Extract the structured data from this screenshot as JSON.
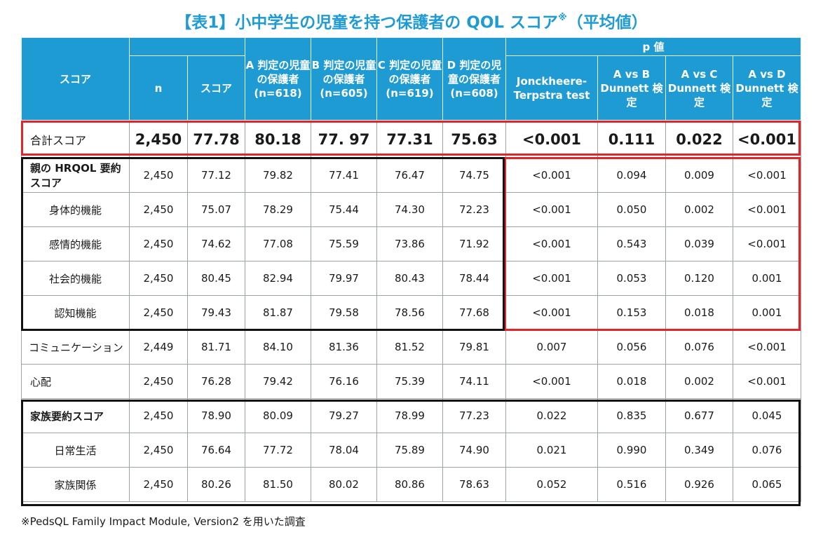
{
  "title": {
    "main": "【表1】小中学生の児童を持つ保護者の QOL スコア",
    "mark": "※",
    "suffix": "（平均値）"
  },
  "header": {
    "score": "スコア",
    "n": "n",
    "score_col": "スコア",
    "group_a": "A 判定の児童の保護者 (n=618)",
    "group_b": "B 判定の児童の保護者 (n=605)",
    "group_c": "C 判定の児童の保護者 (n=619)",
    "group_d": "D 判定の児童の保護者 (n=608)",
    "p_value": "p 値",
    "jt": "Jonckheere-Terpstra test",
    "a_vs_b": "A vs B Dunnett 検定",
    "a_vs_c": "A vs C Dunnett 検定",
    "a_vs_d": "A vs D Dunnett 検定"
  },
  "rows": [
    {
      "label": "合計スコア",
      "n": "2,450",
      "score": "77.78",
      "a": "80.18",
      "b": "77. 97",
      "c": "77.31",
      "d": "75.63",
      "jt": "<0.001",
      "ab": "0.111",
      "ac": "0.022",
      "ad": "<0.001"
    },
    {
      "label": "親の HRQOL 要約スコア",
      "n": "2,450",
      "score": "77.12",
      "a": "79.82",
      "b": "77.41",
      "c": "76.47",
      "d": "74.75",
      "jt": "<0.001",
      "ab": "0.094",
      "ac": "0.009",
      "ad": "<0.001"
    },
    {
      "label": "身体的機能",
      "n": "2,450",
      "score": "75.07",
      "a": "78.29",
      "b": "75.44",
      "c": "74.30",
      "d": "72.23",
      "jt": "<0.001",
      "ab": "0.050",
      "ac": "0.002",
      "ad": "<0.001"
    },
    {
      "label": "感情的機能",
      "n": "2,450",
      "score": "74.62",
      "a": "77.08",
      "b": "75.59",
      "c": "73.86",
      "d": "71.92",
      "jt": "<0.001",
      "ab": "0.543",
      "ac": "0.039",
      "ad": "<0.001"
    },
    {
      "label": "社会的機能",
      "n": "2,450",
      "score": "80.45",
      "a": "82.94",
      "b": "79.97",
      "c": "80.43",
      "d": "78.44",
      "jt": "<0.001",
      "ab": "0.053",
      "ac": "0.120",
      "ad": "0.001"
    },
    {
      "label": "認知機能",
      "n": "2,450",
      "score": "79.43",
      "a": "81.87",
      "b": "79.58",
      "c": "78.56",
      "d": "77.68",
      "jt": "<0.001",
      "ab": "0.153",
      "ac": "0.018",
      "ad": "0.001"
    },
    {
      "label": "コミュニケーション",
      "n": "2,449",
      "score": "81.71",
      "a": "84.10",
      "b": "81.36",
      "c": "81.52",
      "d": "79.81",
      "jt": "0.007",
      "ab": "0.056",
      "ac": "0.076",
      "ad": "<0.001"
    },
    {
      "label": "心配",
      "n": "2,450",
      "score": "76.28",
      "a": "79.42",
      "b": "76.16",
      "c": "75.39",
      "d": "74.11",
      "jt": "<0.001",
      "ab": "0.018",
      "ac": "0.002",
      "ad": "<0.001"
    },
    {
      "label": "家族要約スコア",
      "n": "2,450",
      "score": "78.90",
      "a": "80.09",
      "b": "79.27",
      "c": "78.99",
      "d": "77.23",
      "jt": "0.022",
      "ab": "0.835",
      "ac": "0.677",
      "ad": "0.045"
    },
    {
      "label": "日常生活",
      "n": "2,450",
      "score": "76.64",
      "a": "77.72",
      "b": "78.04",
      "c": "75.89",
      "d": "74.90",
      "jt": "0.021",
      "ab": "0.990",
      "ac": "0.349",
      "ad": "0.076"
    },
    {
      "label": "家族関係",
      "n": "2,450",
      "score": "80.26",
      "a": "81.50",
      "b": "80.02",
      "c": "80.86",
      "d": "78.63",
      "jt": "0.052",
      "ab": "0.516",
      "ac": "0.926",
      "ad": "0.065"
    }
  ],
  "footnote": "※PedsQL Family Impact Module, Version2 を用いた調査",
  "colors": {
    "header_bg": "#1f9bd4",
    "title": "#1f9bd4",
    "highlight": "#e0262b",
    "group_box": "#111111"
  }
}
